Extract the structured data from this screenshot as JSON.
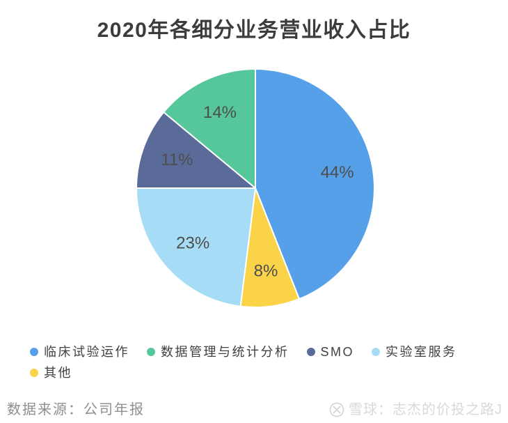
{
  "chart_data": {
    "type": "pie",
    "title": "2020年各细分业务营业收入占比",
    "unit": "%",
    "legend_position": "bottom",
    "label_color": "#4d4d4d",
    "slices": [
      {
        "label": "临床试验运作",
        "value": 44,
        "percent_label": "44%",
        "color": "#55a0e8"
      },
      {
        "label": "数据管理与统计分析",
        "value": 14,
        "percent_label": "14%",
        "color": "#55c79b"
      },
      {
        "label": "SMO",
        "value": 11,
        "percent_label": "11%",
        "color": "#5a6b99"
      },
      {
        "label": "实验室服务",
        "value": 23,
        "percent_label": "23%",
        "color": "#a6dcf5"
      },
      {
        "label": "其他",
        "value": 8,
        "percent_label": "8%",
        "color": "#fad349"
      }
    ],
    "draw_order_clockwise_from_top": [
      0,
      4,
      3,
      2,
      1
    ]
  },
  "footer": {
    "source": "数据来源：公司年报",
    "watermark": "雪球：志杰的价投之路J"
  }
}
